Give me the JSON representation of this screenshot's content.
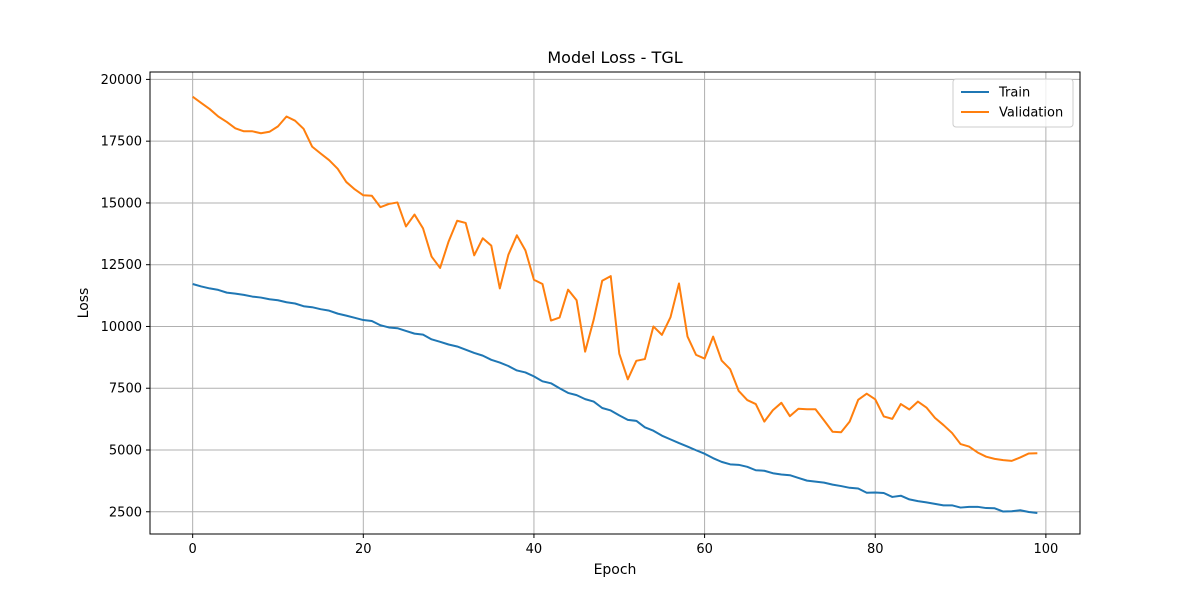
{
  "chart_data": {
    "type": "line",
    "title": "Model Loss - TGL",
    "xlabel": "Epoch",
    "ylabel": "Loss",
    "xlim": [
      -5,
      104
    ],
    "ylim": [
      1600,
      20300
    ],
    "xticks": [
      0,
      20,
      40,
      60,
      80,
      100
    ],
    "yticks": [
      2500,
      5000,
      7500,
      10000,
      12500,
      15000,
      17500,
      20000
    ],
    "grid": true,
    "legend_position": "top-right",
    "series": [
      {
        "name": "Train",
        "color": "#1f77b4",
        "values": [
          11720,
          11620,
          11540,
          11480,
          11370,
          11330,
          11280,
          11210,
          11170,
          11100,
          11060,
          10980,
          10930,
          10820,
          10780,
          10700,
          10640,
          10520,
          10440,
          10350,
          10260,
          10220,
          10050,
          9960,
          9930,
          9820,
          9710,
          9670,
          9480,
          9380,
          9270,
          9190,
          9060,
          8930,
          8820,
          8650,
          8540,
          8400,
          8220,
          8140,
          7980,
          7780,
          7700,
          7500,
          7310,
          7220,
          7060,
          6960,
          6700,
          6600,
          6400,
          6220,
          6180,
          5920,
          5780,
          5580,
          5430,
          5280,
          5140,
          4990,
          4850,
          4670,
          4520,
          4420,
          4400,
          4320,
          4180,
          4160,
          4060,
          4010,
          3980,
          3870,
          3760,
          3720,
          3680,
          3600,
          3540,
          3470,
          3440,
          3270,
          3280,
          3260,
          3100,
          3150,
          3000,
          2930,
          2880,
          2820,
          2760,
          2760,
          2670,
          2700,
          2700,
          2650,
          2640,
          2510,
          2520,
          2560,
          2490,
          2450
        ]
      },
      {
        "name": "Validation",
        "color": "#ff7f0e",
        "values": [
          19300,
          19050,
          18800,
          18500,
          18280,
          18020,
          17900,
          17900,
          17820,
          17880,
          18100,
          18500,
          18330,
          18000,
          17280,
          17000,
          16730,
          16380,
          15850,
          15550,
          15310,
          15290,
          14830,
          14960,
          15020,
          14050,
          14530,
          13970,
          12830,
          12370,
          13440,
          14280,
          14190,
          12880,
          13570,
          13270,
          11540,
          12900,
          13690,
          13080,
          11890,
          11720,
          10240,
          10360,
          11490,
          11060,
          8980,
          10270,
          11850,
          12040,
          8900,
          7860,
          8610,
          8680,
          10000,
          9660,
          10370,
          11740,
          9590,
          8850,
          8700,
          9590,
          8620,
          8270,
          7390,
          7020,
          6860,
          6150,
          6610,
          6910,
          6370,
          6670,
          6650,
          6650,
          6200,
          5740,
          5720,
          6150,
          7030,
          7280,
          7050,
          6360,
          6260,
          6860,
          6640,
          6960,
          6720,
          6300,
          6010,
          5690,
          5240,
          5140,
          4900,
          4730,
          4640,
          4590,
          4560,
          4700,
          4860,
          4870
        ]
      }
    ]
  }
}
